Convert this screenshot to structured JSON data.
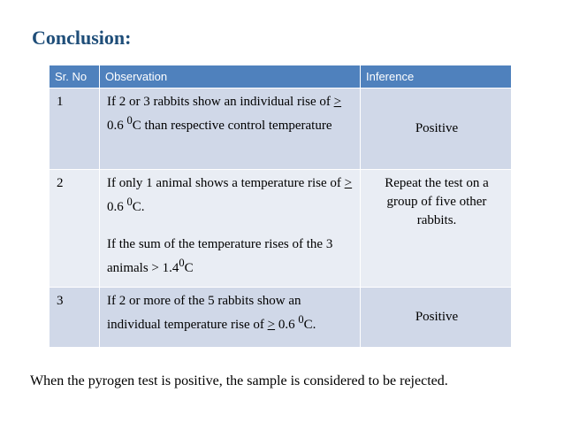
{
  "title": "Conclusion:",
  "table": {
    "headers": [
      "Sr. No",
      "Observation",
      "Inference"
    ],
    "rows": [
      {
        "sr": "1",
        "observation_pre": "If 2 or 3 rabbits show an individual rise of ",
        "observation_ge": ">",
        "observation_val": " 0.6 ",
        "observation_sup": "0",
        "observation_post": "C than respective control temperature",
        "inference": "Positive"
      },
      {
        "sr": "2",
        "observation_pre": "If only 1 animal shows a temperature rise of ",
        "observation_ge": ">",
        "observation_val": " 0.6 ",
        "observation_sup": "0",
        "observation_post": "C.",
        "observation2_pre": "If the sum of the temperature rises of the 3 animals > 1.4",
        "observation2_sup": "0",
        "observation2_post": "C",
        "inference": "Repeat the test on a group of five other rabbits."
      },
      {
        "sr": "3",
        "observation_pre": "If 2 or more of the 5 rabbits show an individual temperature rise of ",
        "observation_ge": ">",
        "observation_val": " 0.6 ",
        "observation_sup": "0",
        "observation_post": "C.",
        "inference": "Positive"
      }
    ]
  },
  "footer": "When the pyrogen test is positive, the sample is considered to be rejected.",
  "colors": {
    "title": "#1f4e79",
    "header_bg": "#4f81bd",
    "row_odd": "#d0d8e8",
    "row_even": "#e9edf4"
  }
}
